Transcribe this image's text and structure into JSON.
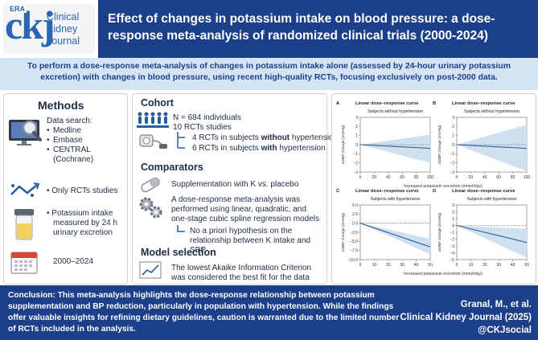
{
  "header": {
    "logo_tag": "ERA",
    "logo_letters": "ckj",
    "journal_name": "Clinical Kidney Journal",
    "title": "Effect of changes in potassium intake on blood pressure: a dose-response meta-analysis of randomized clinical trials (2000-2024)"
  },
  "objective": "To perform a dose-response meta-analysis of changes in potassium intake alone (assessed by 24-hour urinary potassium excretion) with changes in blood pressure, using recent high-quality RCTs, focusing exclusively on post-2000 data.",
  "methods": {
    "heading": "Methods",
    "data_search_label": "Data search:",
    "databases": [
      "Medline",
      "Embase",
      "CENTRAL (Cochrane)"
    ],
    "rct_only": "Only RCTs studies",
    "potassium": "Potassium intake measured by 24 h urinary excretion",
    "years": "2000–2024"
  },
  "cohort": {
    "heading": "Cohort",
    "n_individuals": "N = 684 individuals",
    "n_rcts": "10 RCTs studies",
    "sub1_pre": "4 RCTs in subjects ",
    "sub1_em": "without",
    "sub1_post": " hypertension",
    "sub2_pre": "6 RCTs in subjects ",
    "sub2_em": "with",
    "sub2_post": " hypertension"
  },
  "comparators": {
    "heading": "Comparators",
    "supplementation": "Supplementation with K vs. placebo",
    "analysis": "A dose-response meta-analysis was performed using linear, quadratic, and one-stage cubic spline regression models",
    "hypothesis": "No a priori hypothesis on the relationship between K intake and SBP"
  },
  "model_selection": {
    "heading": "Model selection",
    "text": "The lowest Akaike Information Criterion was considered the best fit for the data"
  },
  "conclusion": "Conclusion: This meta-analysis highlights the dose-response relationship between potassium supplementation and BP reduction, particularly in population with hypertension. While the findings offer valuable insights for refining dietary guidelines, caution is warranted due to the limited number of RCTs included in the analysis.",
  "citation": {
    "authors": "Granal, M., et al.",
    "journal": "Clinical Kidney Journal (2025)",
    "social": "@CKJsocial"
  },
  "colors": {
    "navy": "#1c3f8a",
    "light_blue": "#d5e4f4",
    "band": "#cfe0f0",
    "line": "#2a5d99"
  },
  "charts_common": {
    "panel_title": "Linear dose–response curve",
    "shared_xlabel_top": "Increased potassium excretion (mmol/day)",
    "shared_xlabel_bottom": "Increased potassium excretion (mmol/day)"
  },
  "chart_data": [
    {
      "type": "line",
      "panel": "A",
      "title": "Linear dose–response curve",
      "subtitle": "Subjects without hypertension",
      "ylabel": "ΔSBP change (mmHg)",
      "x": [
        0,
        100
      ],
      "y": [
        0,
        -0.4
      ],
      "ci_low": [
        0,
        -2.0
      ],
      "ci_high": [
        0,
        1.1
      ],
      "xlim": [
        0,
        100
      ],
      "ylim": [
        -3,
        3
      ],
      "xticks": [
        "0",
        "20",
        "40",
        "60",
        "80",
        "100"
      ],
      "yticks": [
        "3",
        "2",
        "1",
        "0",
        "−1",
        "−2",
        "−3"
      ]
    },
    {
      "type": "line",
      "panel": "B",
      "title": "Linear dose–response curve",
      "subtitle": "Subjects without hypertension",
      "ylabel": "ΔDBP change (mmHg)",
      "x": [
        0,
        100
      ],
      "y": [
        0,
        -0.4
      ],
      "ci_low": [
        0,
        -2.9
      ],
      "ci_high": [
        0,
        2.2
      ],
      "xlim": [
        0,
        100
      ],
      "ylim": [
        -3,
        3
      ],
      "xticks": [
        "0",
        "20",
        "40",
        "60",
        "80",
        "100"
      ],
      "yticks": [
        "3",
        "2",
        "1",
        "0",
        "−1",
        "−2",
        "−3"
      ]
    },
    {
      "type": "line",
      "panel": "C",
      "title": "Linear dose–response curve",
      "subtitle": "Subjects with hypertension",
      "ylabel": "ΔSBP change (mmHg)",
      "x": [
        0,
        50
      ],
      "y": [
        0,
        -6.5
      ],
      "ci_low": [
        0,
        -8.5
      ],
      "ci_high": [
        0,
        -4.3
      ],
      "xlim": [
        0,
        50
      ],
      "ylim": [
        -10,
        5
      ],
      "xticks": [
        "0",
        "10",
        "20",
        "30",
        "40",
        "50"
      ],
      "yticks": [
        "5.0",
        "2.5",
        "0.0",
        "−2.5",
        "−5.0",
        "−7.5",
        "−10.0"
      ]
    },
    {
      "type": "line",
      "panel": "D",
      "title": "Linear dose–response curve",
      "subtitle": "Subjects with hypertension",
      "ylabel": "ΔDBP change (mmHg)",
      "x": [
        0,
        50
      ],
      "y": [
        0,
        -2.5
      ],
      "ci_low": [
        0,
        -4.7
      ],
      "ci_high": [
        0,
        -0.5
      ],
      "xlim": [
        0,
        50
      ],
      "ylim": [
        -5,
        3
      ],
      "xticks": [
        "0",
        "10",
        "20",
        "30",
        "40",
        "50"
      ],
      "yticks": [
        "3",
        "2",
        "1",
        "0",
        "−1",
        "−2",
        "−3",
        "−4",
        "−5"
      ]
    }
  ]
}
